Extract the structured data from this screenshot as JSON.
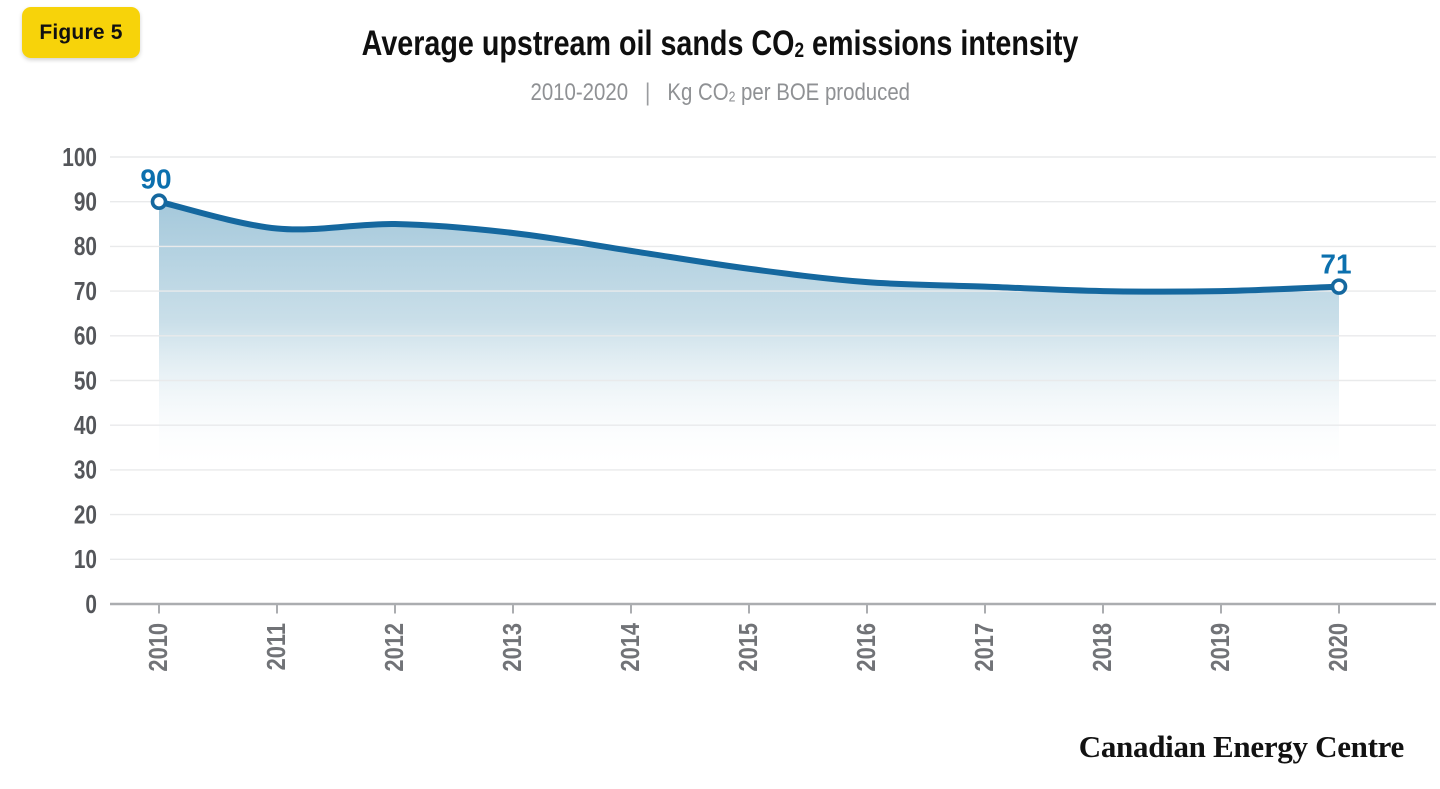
{
  "figure_badge": {
    "label": "Figure 5",
    "bg_color": "#F7D30A"
  },
  "header": {
    "title": {
      "prefix": "Average upstream oil sands CO",
      "subscript": "2",
      "suffix": " emissions intensity"
    },
    "subtitle": {
      "period": "2010-2020",
      "separator": "|",
      "units_prefix": "Kg CO",
      "units_subscript": "2",
      "units_suffix": " per BOE produced"
    }
  },
  "footer": {
    "brand": "Canadian Energy Centre"
  },
  "chart_data": {
    "type": "area",
    "title": "Average upstream oil sands CO2 emissions intensity",
    "subtitle": "2010-2020 | Kg CO2 per BOE produced",
    "x": [
      2010,
      2011,
      2012,
      2013,
      2014,
      2015,
      2016,
      2017,
      2018,
      2019,
      2020
    ],
    "series": [
      {
        "name": "Average upstream oil sands CO2 emissions intensity (Kg CO2 per BOE produced)",
        "values": [
          90,
          84,
          85,
          83,
          79,
          75,
          72,
          71,
          70,
          70,
          71
        ]
      }
    ],
    "ylim": [
      0,
      100
    ],
    "ytick_step": 10,
    "grid": "horizontal",
    "legend": "none",
    "point_labels": [
      {
        "year": 2010,
        "text": "90"
      },
      {
        "year": 2020,
        "text": "71"
      }
    ],
    "colors": {
      "line": "#15689F",
      "point_label": "#0C70AE",
      "marker_fill": "#FFFFFF",
      "area_top": "#A4C8DB",
      "area_mid": "#CADFE9",
      "gridline": "#E9EAEB",
      "axis": "#ABADB0",
      "ytick_text": "#54565A",
      "xtick_text": "#717377",
      "badge_yellow": "#F7D30A"
    }
  }
}
